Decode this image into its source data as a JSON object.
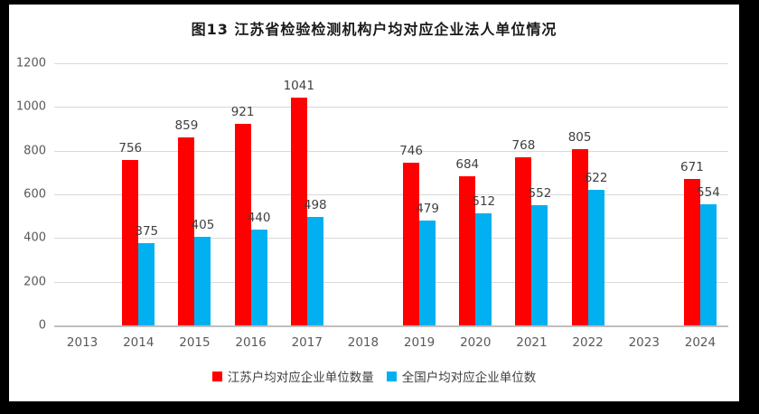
{
  "frame": {
    "border_color": "#000000",
    "background": "#ffffff"
  },
  "chart_data": {
    "type": "bar",
    "title": "图13  江苏省检验检测机构户均对应企业法人单位情况",
    "categories": [
      "2013",
      "2014",
      "2015",
      "2016",
      "2017",
      "2018",
      "2019",
      "2020",
      "2021",
      "2022",
      "2023",
      "2024"
    ],
    "series": [
      {
        "name": "江苏户均对应企业单位数量",
        "color": "#FF0000",
        "values": [
          null,
          756,
          859,
          921,
          1041,
          null,
          746,
          684,
          768,
          805,
          null,
          671
        ]
      },
      {
        "name": "全国户均对应企业单位数",
        "color": "#00B0F0",
        "values": [
          null,
          375,
          405,
          440,
          498,
          null,
          479,
          512,
          552,
          622,
          null,
          554
        ]
      }
    ],
    "xlabel": "",
    "ylabel": "",
    "ylim": [
      0,
      1200
    ],
    "yticks": [
      0,
      200,
      400,
      600,
      800,
      1000,
      1200
    ],
    "grid": true,
    "legend_position": "bottom",
    "data_labels": true,
    "colors": {
      "gridline": "#d9d9d9",
      "axis_line": "#bfbfbf",
      "tick_text": "#595959",
      "data_label_text": "#404040"
    }
  }
}
